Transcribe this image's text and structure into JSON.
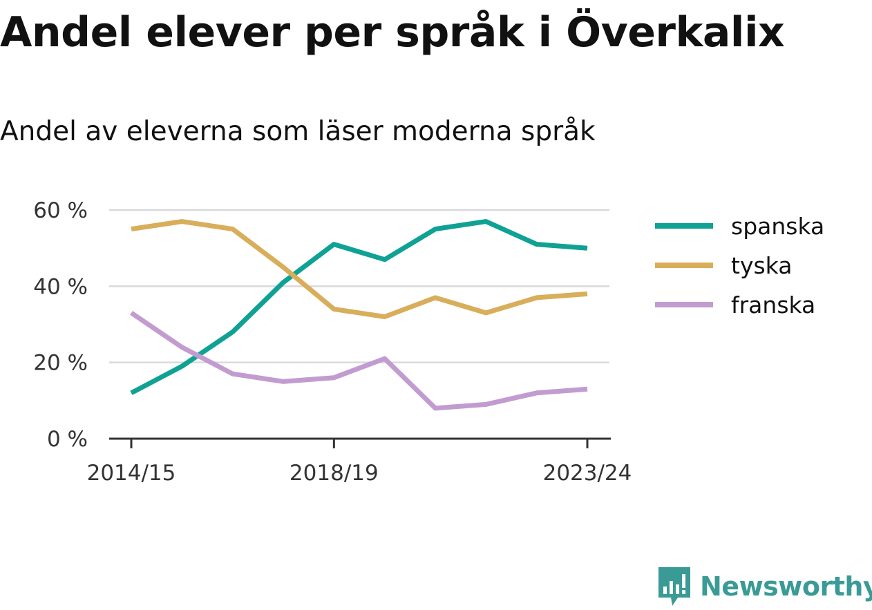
{
  "header": {
    "title": "Andel elever per språk i Överkalix",
    "subtitle": "Andel av eleverna som läser moderna språk"
  },
  "brand": {
    "name": "Newsworthy",
    "color": "#3a9b96",
    "icon": "newsworthy-logo-icon"
  },
  "chart_data": {
    "type": "line",
    "title": "Andel elever per språk i Överkalix",
    "subtitle": "Andel av eleverna som läser moderna språk",
    "x": [
      "2014/15",
      "2015/16",
      "2016/17",
      "2017/18",
      "2018/19",
      "2019/20",
      "2020/21",
      "2021/22",
      "2022/23",
      "2023/24"
    ],
    "x_tick_labels": [
      "2014/15",
      "2018/19",
      "2023/24"
    ],
    "y_ticks": [
      0,
      20,
      40,
      60
    ],
    "y_tick_labels": [
      "0 %",
      "20 %",
      "40 %",
      "60 %"
    ],
    "ylim": [
      0,
      60
    ],
    "unit": "%",
    "grid": true,
    "legend_position": "right",
    "series": [
      {
        "name": "spanska",
        "color": "#10a195",
        "values": [
          12,
          19,
          28,
          41,
          51,
          47,
          55,
          57,
          51,
          50
        ]
      },
      {
        "name": "tyska",
        "color": "#d8ae5b",
        "values": [
          55,
          57,
          55,
          45,
          34,
          32,
          37,
          33,
          37,
          38
        ]
      },
      {
        "name": "franska",
        "color": "#c29cd0",
        "values": [
          33,
          24,
          17,
          15,
          16,
          21,
          8,
          9,
          12,
          13
        ]
      }
    ]
  }
}
